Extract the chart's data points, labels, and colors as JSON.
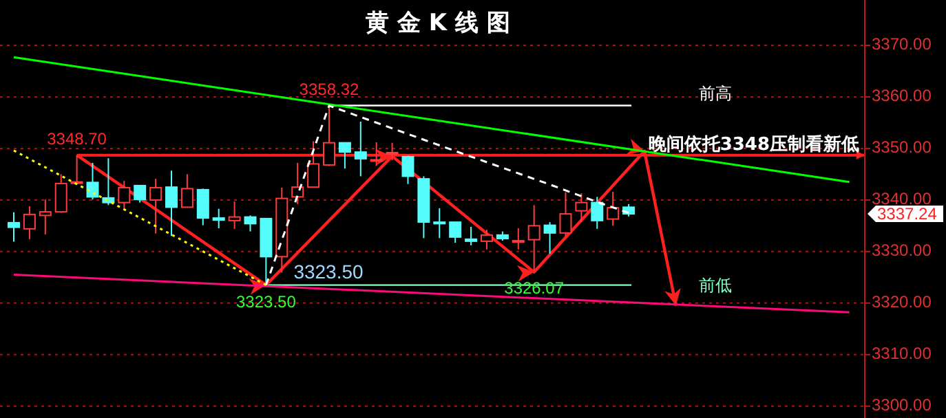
{
  "chart_data": {
    "type": "candlestick",
    "title": "黄 金 K 线 图",
    "categories": [
      null,
      null,
      null,
      null,
      null,
      null,
      null,
      null,
      null,
      null,
      null,
      null,
      null,
      null,
      null,
      null,
      null,
      null,
      null,
      null,
      null,
      null,
      null,
      null,
      null,
      null,
      null,
      null,
      null,
      null,
      null,
      null,
      null,
      null,
      null,
      null,
      null,
      null,
      null,
      null,
      null,
      null,
      null,
      null,
      null,
      null,
      null,
      null,
      null,
      null,
      null,
      null,
      null,
      null
    ],
    "ohlc": [
      [
        3335.6,
        3337.6,
        3331.9,
        3334.7
      ],
      [
        3334.4,
        3338.8,
        3332.4,
        3337.2
      ],
      [
        3337.0,
        3340.1,
        3333.3,
        3337.7
      ],
      [
        3337.7,
        3345.0,
        3337.5,
        3343.2
      ],
      [
        3343.3,
        3348.7,
        3343.0,
        3343.5
      ],
      [
        3343.4,
        3347.2,
        3340.1,
        3340.6
      ],
      [
        3340.4,
        3348.1,
        3339.0,
        3339.5
      ],
      [
        3339.5,
        3343.7,
        3338.4,
        3342.4
      ],
      [
        3342.8,
        3342.8,
        3339.5,
        3340.1
      ],
      [
        3340.0,
        3344.1,
        3333.5,
        3342.4
      ],
      [
        3342.5,
        3345.7,
        3333.0,
        3338.6
      ],
      [
        3338.6,
        3345.0,
        3338.6,
        3342.2
      ],
      [
        3342.0,
        3342.2,
        3335.1,
        3336.5
      ],
      [
        3336.5,
        3338.3,
        3334.5,
        3336.1
      ],
      [
        3336.0,
        3339.7,
        3334.4,
        3336.7
      ],
      [
        3336.7,
        3337.0,
        3333.9,
        3335.4
      ],
      [
        3336.4,
        3336.4,
        3323.5,
        3329.0
      ],
      [
        3329.0,
        3342.4,
        3325.9,
        3340.3
      ],
      [
        3340.6,
        3347.2,
        3339.2,
        3342.5
      ],
      [
        3342.5,
        3351.4,
        3342.5,
        3347.0
      ],
      [
        3346.8,
        3358.32,
        3346.6,
        3351.1
      ],
      [
        3351.1,
        3351.1,
        3346.1,
        3349.3
      ],
      [
        3349.3,
        3355.2,
        3344.6,
        3348.0
      ],
      [
        3347.6,
        3351.2,
        3346.6,
        3347.8
      ],
      [
        3349.0,
        3351.1,
        3347.7,
        3349.2
      ],
      [
        3348.4,
        3348.6,
        3343.1,
        3344.6
      ],
      [
        3344.1,
        3344.6,
        3332.6,
        3335.7
      ],
      [
        3335.7,
        3338.4,
        3332.6,
        3335.4
      ],
      [
        3335.7,
        3335.7,
        3331.7,
        3332.8
      ],
      [
        3332.4,
        3334.8,
        3331.2,
        3332.0
      ],
      [
        3332.0,
        3334.2,
        3330.4,
        3333.2
      ],
      [
        3333.2,
        3333.9,
        3332.1,
        3332.5
      ],
      [
        3331.9,
        3334.5,
        3330.4,
        3332.1
      ],
      [
        3332.3,
        3339.0,
        3326.07,
        3335.0
      ],
      [
        3335.1,
        3335.7,
        3329.6,
        3333.6
      ],
      [
        3333.6,
        3341.5,
        3333.0,
        3337.3
      ],
      [
        3337.9,
        3341.3,
        3335.7,
        3339.5
      ],
      [
        3339.5,
        3340.6,
        3334.4,
        3336.0
      ],
      [
        3336.3,
        3341.6,
        3335.0,
        3338.5
      ],
      [
        3338.6,
        3339.2,
        3336.8,
        3337.3
      ],
      null,
      null,
      null,
      null,
      null,
      null,
      null,
      null,
      null,
      null,
      null,
      null,
      null,
      null
    ],
    "colors": [
      "#54fcfc",
      "#ff3b3b",
      "#ff3b3b",
      "#ff3b3b",
      "#ff3b3b",
      "#54fcfc",
      "#54fcfc",
      "#ff3b3b",
      "#54fcfc",
      "#ff3b3b",
      "#54fcfc",
      "#ff3b3b",
      "#54fcfc",
      "#54fcfc",
      "#ff3b3b",
      "#54fcfc",
      "#54fcfc",
      "#ff3b3b",
      "#ff3b3b",
      "#ff3b3b",
      "#ff3b3b",
      "#54fcfc",
      "#54fcfc",
      "#ff3b3b",
      "#ff3b3b",
      "#54fcfc",
      "#54fcfc",
      "#54fcfc",
      "#54fcfc",
      "#54fcfc",
      "#ff3b3b",
      "#54fcfc",
      "#ff3b3b",
      "#ff3b3b",
      "#54fcfc",
      "#ff3b3b",
      "#ff3b3b",
      "#54fcfc",
      "#ff3b3b",
      "#54fcfc",
      null,
      null,
      null,
      null,
      null,
      null,
      null,
      null,
      null,
      null,
      null,
      null,
      null,
      null
    ],
    "series": [
      {
        "type": "line",
        "color": "#00ff00",
        "values": [
          3367.7,
          null,
          null,
          null,
          null,
          null,
          null,
          null,
          null,
          null,
          null,
          null,
          null,
          null,
          null,
          null,
          null,
          null,
          null,
          null,
          null,
          null,
          null,
          null,
          null,
          null,
          null,
          null,
          null,
          null,
          null,
          null,
          null,
          null,
          null,
          null,
          null,
          null,
          null,
          null,
          null,
          null,
          null,
          null,
          null,
          null,
          null,
          null,
          null,
          null,
          null,
          null,
          null,
          3343.5
        ],
        "line_style": "solid"
      },
      {
        "type": "line",
        "color": "#ff0a7a",
        "values": [
          3325.5,
          null,
          null,
          null,
          null,
          null,
          null,
          null,
          null,
          null,
          null,
          null,
          null,
          null,
          null,
          null,
          null,
          null,
          null,
          null,
          null,
          null,
          null,
          null,
          null,
          null,
          null,
          null,
          null,
          null,
          null,
          null,
          null,
          null,
          null,
          null,
          null,
          null,
          null,
          null,
          null,
          null,
          null,
          null,
          null,
          null,
          null,
          null,
          null,
          null,
          null,
          null,
          null,
          3318.2
        ],
        "line_style": "solid"
      },
      {
        "type": "line",
        "color": "#ffff00",
        "values": [
          3349.6,
          null,
          null,
          null,
          null,
          null,
          null,
          null,
          null,
          null,
          null,
          null,
          null,
          null,
          null,
          null,
          3323.5,
          null,
          null,
          null,
          null,
          null,
          null,
          null,
          null,
          null,
          null,
          null,
          null,
          null,
          null,
          null,
          null,
          null,
          null,
          null,
          null,
          null,
          null,
          null,
          null,
          null,
          null,
          null,
          null,
          null,
          null,
          null,
          null,
          null,
          null,
          null,
          null,
          null
        ],
        "line_style": "dotted"
      },
      {
        "type": "line",
        "color": "#ffffff",
        "values": [
          null,
          null,
          null,
          null,
          null,
          null,
          null,
          null,
          null,
          null,
          null,
          null,
          null,
          null,
          null,
          null,
          3323.5,
          null,
          null,
          null,
          3358.3,
          null,
          null,
          null,
          null,
          null,
          null,
          null,
          3349.5,
          null,
          null,
          null,
          null,
          null,
          3343.0,
          null,
          null,
          3339.6,
          null,
          3337.5,
          null,
          null,
          null,
          null,
          null,
          null,
          null,
          null,
          null,
          null,
          null,
          null,
          null,
          null
        ],
        "line_style": "dashed"
      },
      {
        "type": "line",
        "color": "#ff2020",
        "values": [
          null,
          null,
          null,
          null,
          3348.7,
          null,
          null,
          null,
          null,
          null,
          null,
          null,
          null,
          null,
          null,
          null,
          3323.5,
          null,
          null,
          null,
          null,
          null,
          null,
          null,
          3348.5,
          null,
          null,
          null,
          null,
          null,
          null,
          null,
          null,
          3326.0,
          null,
          null,
          null,
          null,
          null,
          null,
          3349.5,
          null,
          3319.5,
          null,
          null,
          null,
          null,
          null,
          null,
          null,
          null,
          null,
          null,
          null
        ],
        "line_style": "solid"
      }
    ],
    "ylim": [
      3297.7,
      3378.8
    ],
    "yticks": [
      {
        "value": 3300,
        "label": "3300.00"
      },
      {
        "value": 3310,
        "label": "3310.00"
      },
      {
        "value": 3320,
        "label": "3320.00"
      },
      {
        "value": 3330,
        "label": "3330.00"
      },
      {
        "value": 3340,
        "label": "3340.00"
      },
      {
        "value": 3350,
        "label": "3350.00"
      },
      {
        "value": 3360,
        "label": "3360.00"
      },
      {
        "value": 3370,
        "label": "3370.00"
      }
    ],
    "tick_labels": "y",
    "grid": "y",
    "ref_lines": [
      {
        "axis": "y",
        "value": 3348.7,
        "label": "晚间依托3348压制看新低",
        "color": "#ff2020"
      },
      {
        "axis": "y",
        "value": 3358.32,
        "label": "前高",
        "color": "#ffffff"
      },
      {
        "axis": "y",
        "value": 3323.5,
        "label": "前低",
        "color": "#80ffc0"
      }
    ],
    "annotations": [
      {
        "text": "3348.70",
        "y": 3348.7
      },
      {
        "text": "3358.32",
        "y": 3358.32
      },
      {
        "text": "3323.50",
        "y": 3323.5
      },
      {
        "text": "3323.50",
        "y": 3323.5
      },
      {
        "text": "3326.07",
        "y": 3326.07
      },
      "3337.24"
    ]
  }
}
